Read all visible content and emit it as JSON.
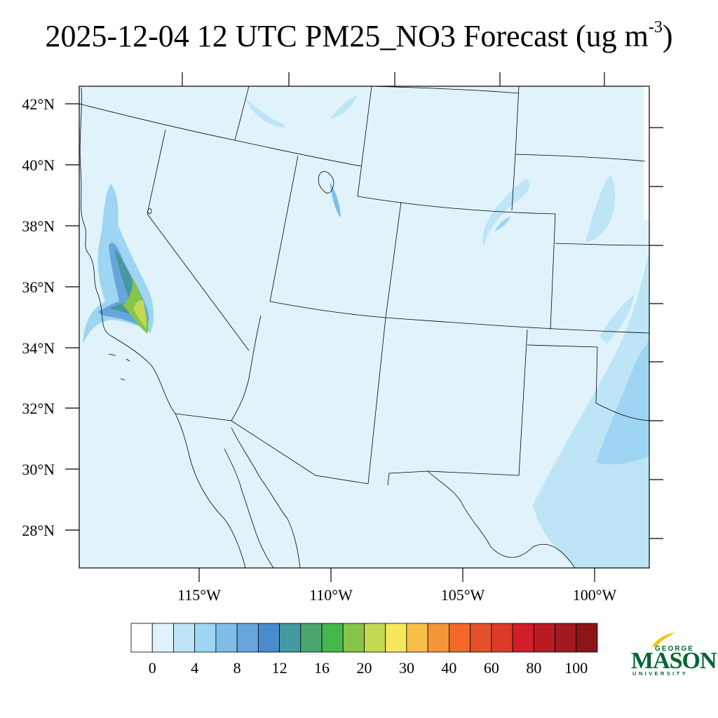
{
  "title": {
    "main": "2025-12-04 12 UTC PM25_NO3 Forecast (ug m",
    "superscript": "-3",
    "close": ")"
  },
  "map": {
    "lat_labels": [
      "42°N",
      "40°N",
      "38°N",
      "36°N",
      "34°N",
      "32°N",
      "30°N",
      "28°N"
    ],
    "lon_labels": [
      "115°W",
      "110°W",
      "105°W",
      "100°W"
    ],
    "background_color": "#e0f3fb"
  },
  "colorbar": {
    "colors": [
      "#ffffff",
      "#e0f3fb",
      "#bde5f6",
      "#9dd5f2",
      "#80bde6",
      "#67a6dc",
      "#4a8bcc",
      "#45999f",
      "#4ba66e",
      "#45b64b",
      "#86c44a",
      "#c3d955",
      "#f6e75c",
      "#f7be4a",
      "#f5953a",
      "#f2682a",
      "#e4502b",
      "#de3a2a",
      "#d01f29",
      "#b81b24",
      "#a21920",
      "#8b161a"
    ],
    "labels": [
      "0",
      "4",
      "8",
      "12",
      "16",
      "20",
      "30",
      "40",
      "60",
      "80",
      "100"
    ]
  },
  "logo": {
    "george": "GEORGE",
    "mason": "MASON",
    "university": "UNIVERSITY",
    "color": "#006633",
    "accent": "#f2c200"
  }
}
